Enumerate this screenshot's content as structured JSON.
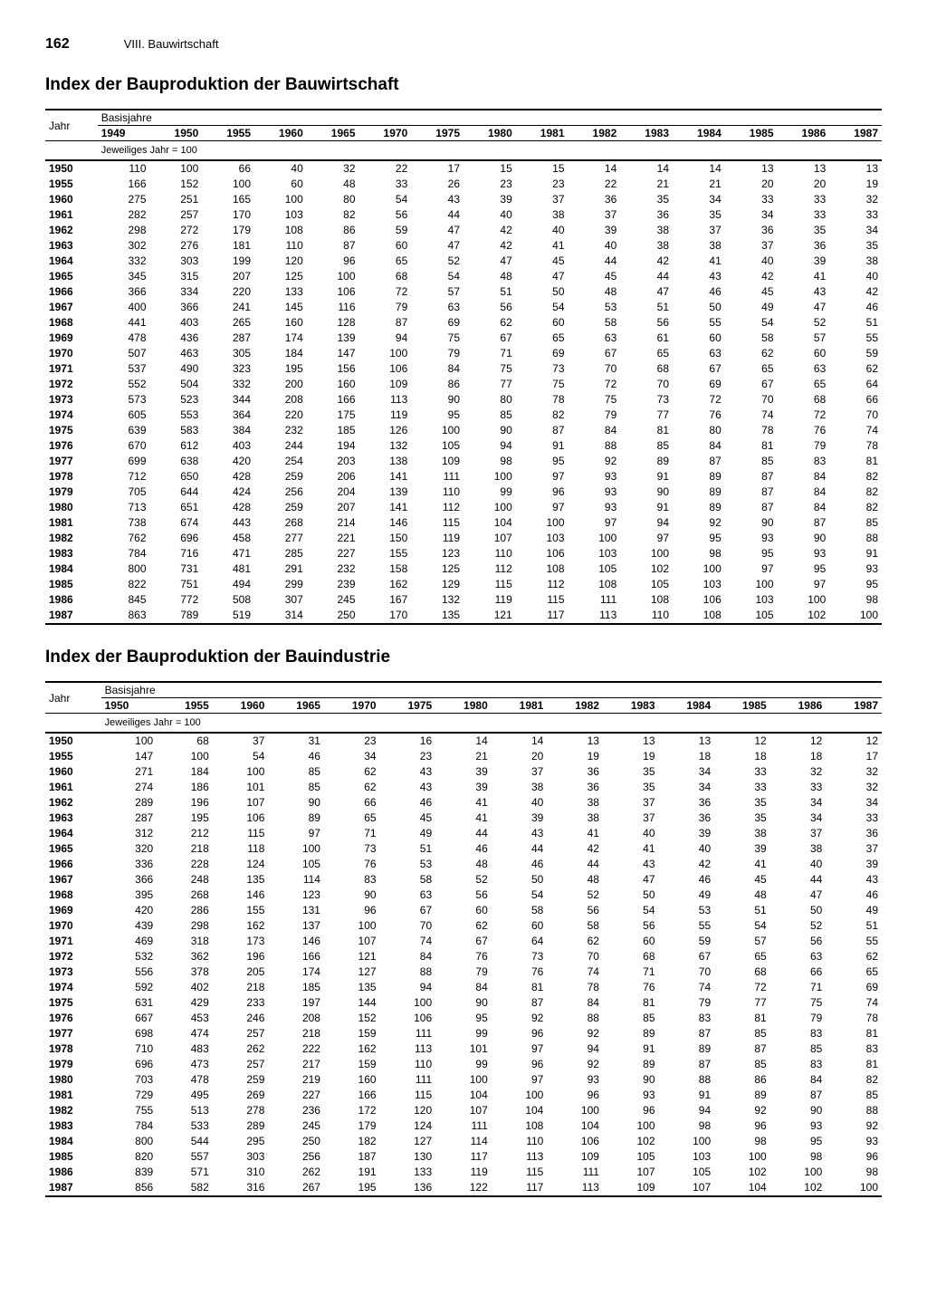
{
  "page_number": "162",
  "chapter": "VIII. Bauwirtschaft",
  "table1": {
    "title": "Index der Bauproduktion der Bauwirtschaft",
    "col_label_year": "Jahr",
    "col_label_basis": "Basisjahre",
    "note": "Jeweiliges Jahr = 100",
    "columns": [
      "1949",
      "1950",
      "1955",
      "1960",
      "1965",
      "1970",
      "1975",
      "1980",
      "1981",
      "1982",
      "1983",
      "1984",
      "1985",
      "1986",
      "1987"
    ],
    "rows": [
      {
        "y": "1950",
        "v": [
          "110",
          "100",
          "66",
          "40",
          "32",
          "22",
          "17",
          "15",
          "15",
          "14",
          "14",
          "14",
          "13",
          "13",
          "13"
        ]
      },
      {
        "y": "1955",
        "v": [
          "166",
          "152",
          "100",
          "60",
          "48",
          "33",
          "26",
          "23",
          "23",
          "22",
          "21",
          "21",
          "20",
          "20",
          "19"
        ]
      },
      {
        "y": "1960",
        "v": [
          "275",
          "251",
          "165",
          "100",
          "80",
          "54",
          "43",
          "39",
          "37",
          "36",
          "35",
          "34",
          "33",
          "33",
          "32"
        ]
      },
      {
        "y": "1961",
        "v": [
          "282",
          "257",
          "170",
          "103",
          "82",
          "56",
          "44",
          "40",
          "38",
          "37",
          "36",
          "35",
          "34",
          "33",
          "33"
        ]
      },
      {
        "y": "1962",
        "v": [
          "298",
          "272",
          "179",
          "108",
          "86",
          "59",
          "47",
          "42",
          "40",
          "39",
          "38",
          "37",
          "36",
          "35",
          "34"
        ]
      },
      {
        "y": "1963",
        "v": [
          "302",
          "276",
          "181",
          "110",
          "87",
          "60",
          "47",
          "42",
          "41",
          "40",
          "38",
          "38",
          "37",
          "36",
          "35"
        ]
      },
      {
        "y": "1964",
        "v": [
          "332",
          "303",
          "199",
          "120",
          "96",
          "65",
          "52",
          "47",
          "45",
          "44",
          "42",
          "41",
          "40",
          "39",
          "38"
        ]
      },
      {
        "y": "1965",
        "v": [
          "345",
          "315",
          "207",
          "125",
          "100",
          "68",
          "54",
          "48",
          "47",
          "45",
          "44",
          "43",
          "42",
          "41",
          "40"
        ]
      },
      {
        "y": "1966",
        "v": [
          "366",
          "334",
          "220",
          "133",
          "106",
          "72",
          "57",
          "51",
          "50",
          "48",
          "47",
          "46",
          "45",
          "43",
          "42"
        ]
      },
      {
        "y": "1967",
        "v": [
          "400",
          "366",
          "241",
          "145",
          "116",
          "79",
          "63",
          "56",
          "54",
          "53",
          "51",
          "50",
          "49",
          "47",
          "46"
        ]
      },
      {
        "y": "1968",
        "v": [
          "441",
          "403",
          "265",
          "160",
          "128",
          "87",
          "69",
          "62",
          "60",
          "58",
          "56",
          "55",
          "54",
          "52",
          "51"
        ]
      },
      {
        "y": "1969",
        "v": [
          "478",
          "436",
          "287",
          "174",
          "139",
          "94",
          "75",
          "67",
          "65",
          "63",
          "61",
          "60",
          "58",
          "57",
          "55"
        ]
      },
      {
        "y": "1970",
        "v": [
          "507",
          "463",
          "305",
          "184",
          "147",
          "100",
          "79",
          "71",
          "69",
          "67",
          "65",
          "63",
          "62",
          "60",
          "59"
        ]
      },
      {
        "y": "1971",
        "v": [
          "537",
          "490",
          "323",
          "195",
          "156",
          "106",
          "84",
          "75",
          "73",
          "70",
          "68",
          "67",
          "65",
          "63",
          "62"
        ]
      },
      {
        "y": "1972",
        "v": [
          "552",
          "504",
          "332",
          "200",
          "160",
          "109",
          "86",
          "77",
          "75",
          "72",
          "70",
          "69",
          "67",
          "65",
          "64"
        ]
      },
      {
        "y": "1973",
        "v": [
          "573",
          "523",
          "344",
          "208",
          "166",
          "113",
          "90",
          "80",
          "78",
          "75",
          "73",
          "72",
          "70",
          "68",
          "66"
        ]
      },
      {
        "y": "1974",
        "v": [
          "605",
          "553",
          "364",
          "220",
          "175",
          "119",
          "95",
          "85",
          "82",
          "79",
          "77",
          "76",
          "74",
          "72",
          "70"
        ]
      },
      {
        "y": "1975",
        "v": [
          "639",
          "583",
          "384",
          "232",
          "185",
          "126",
          "100",
          "90",
          "87",
          "84",
          "81",
          "80",
          "78",
          "76",
          "74"
        ]
      },
      {
        "y": "1976",
        "v": [
          "670",
          "612",
          "403",
          "244",
          "194",
          "132",
          "105",
          "94",
          "91",
          "88",
          "85",
          "84",
          "81",
          "79",
          "78"
        ]
      },
      {
        "y": "1977",
        "v": [
          "699",
          "638",
          "420",
          "254",
          "203",
          "138",
          "109",
          "98",
          "95",
          "92",
          "89",
          "87",
          "85",
          "83",
          "81"
        ]
      },
      {
        "y": "1978",
        "v": [
          "712",
          "650",
          "428",
          "259",
          "206",
          "141",
          "111",
          "100",
          "97",
          "93",
          "91",
          "89",
          "87",
          "84",
          "82"
        ]
      },
      {
        "y": "1979",
        "v": [
          "705",
          "644",
          "424",
          "256",
          "204",
          "139",
          "110",
          "99",
          "96",
          "93",
          "90",
          "89",
          "87",
          "84",
          "82"
        ]
      },
      {
        "y": "1980",
        "v": [
          "713",
          "651",
          "428",
          "259",
          "207",
          "141",
          "112",
          "100",
          "97",
          "93",
          "91",
          "89",
          "87",
          "84",
          "82"
        ]
      },
      {
        "y": "1981",
        "v": [
          "738",
          "674",
          "443",
          "268",
          "214",
          "146",
          "115",
          "104",
          "100",
          "97",
          "94",
          "92",
          "90",
          "87",
          "85"
        ]
      },
      {
        "y": "1982",
        "v": [
          "762",
          "696",
          "458",
          "277",
          "221",
          "150",
          "119",
          "107",
          "103",
          "100",
          "97",
          "95",
          "93",
          "90",
          "88"
        ]
      },
      {
        "y": "1983",
        "v": [
          "784",
          "716",
          "471",
          "285",
          "227",
          "155",
          "123",
          "110",
          "106",
          "103",
          "100",
          "98",
          "95",
          "93",
          "91"
        ]
      },
      {
        "y": "1984",
        "v": [
          "800",
          "731",
          "481",
          "291",
          "232",
          "158",
          "125",
          "112",
          "108",
          "105",
          "102",
          "100",
          "97",
          "95",
          "93"
        ]
      },
      {
        "y": "1985",
        "v": [
          "822",
          "751",
          "494",
          "299",
          "239",
          "162",
          "129",
          "115",
          "112",
          "108",
          "105",
          "103",
          "100",
          "97",
          "95"
        ]
      },
      {
        "y": "1986",
        "v": [
          "845",
          "772",
          "508",
          "307",
          "245",
          "167",
          "132",
          "119",
          "115",
          "111",
          "108",
          "106",
          "103",
          "100",
          "98"
        ]
      },
      {
        "y": "1987",
        "v": [
          "863",
          "789",
          "519",
          "314",
          "250",
          "170",
          "135",
          "121",
          "117",
          "113",
          "110",
          "108",
          "105",
          "102",
          "100"
        ]
      }
    ]
  },
  "table2": {
    "title": "Index der Bauproduktion der Bauindustrie",
    "col_label_year": "Jahr",
    "col_label_basis": "Basisjahre",
    "note": "Jeweiliges Jahr = 100",
    "columns": [
      "1950",
      "1955",
      "1960",
      "1965",
      "1970",
      "1975",
      "1980",
      "1981",
      "1982",
      "1983",
      "1984",
      "1985",
      "1986",
      "1987"
    ],
    "rows": [
      {
        "y": "1950",
        "v": [
          "100",
          "68",
          "37",
          "31",
          "23",
          "16",
          "14",
          "14",
          "13",
          "13",
          "13",
          "12",
          "12",
          "12"
        ]
      },
      {
        "y": "1955",
        "v": [
          "147",
          "100",
          "54",
          "46",
          "34",
          "23",
          "21",
          "20",
          "19",
          "19",
          "18",
          "18",
          "18",
          "17"
        ]
      },
      {
        "y": "1960",
        "v": [
          "271",
          "184",
          "100",
          "85",
          "62",
          "43",
          "39",
          "37",
          "36",
          "35",
          "34",
          "33",
          "32",
          "32"
        ]
      },
      {
        "y": "1961",
        "v": [
          "274",
          "186",
          "101",
          "85",
          "62",
          "43",
          "39",
          "38",
          "36",
          "35",
          "34",
          "33",
          "33",
          "32"
        ]
      },
      {
        "y": "1962",
        "v": [
          "289",
          "196",
          "107",
          "90",
          "66",
          "46",
          "41",
          "40",
          "38",
          "37",
          "36",
          "35",
          "34",
          "34"
        ]
      },
      {
        "y": "1963",
        "v": [
          "287",
          "195",
          "106",
          "89",
          "65",
          "45",
          "41",
          "39",
          "38",
          "37",
          "36",
          "35",
          "34",
          "33"
        ]
      },
      {
        "y": "1964",
        "v": [
          "312",
          "212",
          "115",
          "97",
          "71",
          "49",
          "44",
          "43",
          "41",
          "40",
          "39",
          "38",
          "37",
          "36"
        ]
      },
      {
        "y": "1965",
        "v": [
          "320",
          "218",
          "118",
          "100",
          "73",
          "51",
          "46",
          "44",
          "42",
          "41",
          "40",
          "39",
          "38",
          "37"
        ]
      },
      {
        "y": "1966",
        "v": [
          "336",
          "228",
          "124",
          "105",
          "76",
          "53",
          "48",
          "46",
          "44",
          "43",
          "42",
          "41",
          "40",
          "39"
        ]
      },
      {
        "y": "1967",
        "v": [
          "366",
          "248",
          "135",
          "114",
          "83",
          "58",
          "52",
          "50",
          "48",
          "47",
          "46",
          "45",
          "44",
          "43"
        ]
      },
      {
        "y": "1968",
        "v": [
          "395",
          "268",
          "146",
          "123",
          "90",
          "63",
          "56",
          "54",
          "52",
          "50",
          "49",
          "48",
          "47",
          "46"
        ]
      },
      {
        "y": "1969",
        "v": [
          "420",
          "286",
          "155",
          "131",
          "96",
          "67",
          "60",
          "58",
          "56",
          "54",
          "53",
          "51",
          "50",
          "49"
        ]
      },
      {
        "y": "1970",
        "v": [
          "439",
          "298",
          "162",
          "137",
          "100",
          "70",
          "62",
          "60",
          "58",
          "56",
          "55",
          "54",
          "52",
          "51"
        ]
      },
      {
        "y": "1971",
        "v": [
          "469",
          "318",
          "173",
          "146",
          "107",
          "74",
          "67",
          "64",
          "62",
          "60",
          "59",
          "57",
          "56",
          "55"
        ]
      },
      {
        "y": "1972",
        "v": [
          "532",
          "362",
          "196",
          "166",
          "121",
          "84",
          "76",
          "73",
          "70",
          "68",
          "67",
          "65",
          "63",
          "62"
        ]
      },
      {
        "y": "1973",
        "v": [
          "556",
          "378",
          "205",
          "174",
          "127",
          "88",
          "79",
          "76",
          "74",
          "71",
          "70",
          "68",
          "66",
          "65"
        ]
      },
      {
        "y": "1974",
        "v": [
          "592",
          "402",
          "218",
          "185",
          "135",
          "94",
          "84",
          "81",
          "78",
          "76",
          "74",
          "72",
          "71",
          "69"
        ]
      },
      {
        "y": "1975",
        "v": [
          "631",
          "429",
          "233",
          "197",
          "144",
          "100",
          "90",
          "87",
          "84",
          "81",
          "79",
          "77",
          "75",
          "74"
        ]
      },
      {
        "y": "1976",
        "v": [
          "667",
          "453",
          "246",
          "208",
          "152",
          "106",
          "95",
          "92",
          "88",
          "85",
          "83",
          "81",
          "79",
          "78"
        ]
      },
      {
        "y": "1977",
        "v": [
          "698",
          "474",
          "257",
          "218",
          "159",
          "111",
          "99",
          "96",
          "92",
          "89",
          "87",
          "85",
          "83",
          "81"
        ]
      },
      {
        "y": "1978",
        "v": [
          "710",
          "483",
          "262",
          "222",
          "162",
          "113",
          "101",
          "97",
          "94",
          "91",
          "89",
          "87",
          "85",
          "83"
        ]
      },
      {
        "y": "1979",
        "v": [
          "696",
          "473",
          "257",
          "217",
          "159",
          "110",
          "99",
          "96",
          "92",
          "89",
          "87",
          "85",
          "83",
          "81"
        ]
      },
      {
        "y": "1980",
        "v": [
          "703",
          "478",
          "259",
          "219",
          "160",
          "111",
          "100",
          "97",
          "93",
          "90",
          "88",
          "86",
          "84",
          "82"
        ]
      },
      {
        "y": "1981",
        "v": [
          "729",
          "495",
          "269",
          "227",
          "166",
          "115",
          "104",
          "100",
          "96",
          "93",
          "91",
          "89",
          "87",
          "85"
        ]
      },
      {
        "y": "1982",
        "v": [
          "755",
          "513",
          "278",
          "236",
          "172",
          "120",
          "107",
          "104",
          "100",
          "96",
          "94",
          "92",
          "90",
          "88"
        ]
      },
      {
        "y": "1983",
        "v": [
          "784",
          "533",
          "289",
          "245",
          "179",
          "124",
          "111",
          "108",
          "104",
          "100",
          "98",
          "96",
          "93",
          "92"
        ]
      },
      {
        "y": "1984",
        "v": [
          "800",
          "544",
          "295",
          "250",
          "182",
          "127",
          "114",
          "110",
          "106",
          "102",
          "100",
          "98",
          "95",
          "93"
        ]
      },
      {
        "y": "1985",
        "v": [
          "820",
          "557",
          "303",
          "256",
          "187",
          "130",
          "117",
          "113",
          "109",
          "105",
          "103",
          "100",
          "98",
          "96"
        ]
      },
      {
        "y": "1986",
        "v": [
          "839",
          "571",
          "310",
          "262",
          "191",
          "133",
          "119",
          "115",
          "111",
          "107",
          "105",
          "102",
          "100",
          "98"
        ]
      },
      {
        "y": "1987",
        "v": [
          "856",
          "582",
          "316",
          "267",
          "195",
          "136",
          "122",
          "117",
          "113",
          "109",
          "107",
          "104",
          "102",
          "100"
        ]
      }
    ]
  }
}
